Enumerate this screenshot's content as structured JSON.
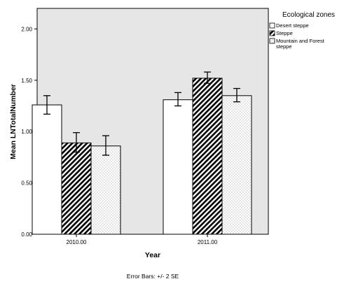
{
  "chart_data": {
    "type": "bar",
    "title": "",
    "xlabel": "Year",
    "ylabel": "Mean LNTotalNumber",
    "categories": [
      "2010.00",
      "2011.00"
    ],
    "ylim": [
      0,
      2.2
    ],
    "yticks": [
      0,
      0.5,
      1.0,
      1.5,
      2.0
    ],
    "ytick_labels": [
      "0.00",
      "0.50",
      "1.00",
      "1.50",
      "2.00"
    ],
    "legend": {
      "title": "Ecological zones",
      "placement": "right"
    },
    "series": [
      {
        "name": "Desert steppe",
        "values": [
          1.26,
          1.31
        ],
        "error_low": [
          1.17,
          1.25
        ],
        "error_high": [
          1.35,
          1.38
        ],
        "fill": "solid-white"
      },
      {
        "name": "Steppe",
        "values": [
          0.89,
          1.52
        ],
        "error_low": [
          0.8,
          1.47
        ],
        "error_high": [
          0.99,
          1.58
        ],
        "fill": "diagonal-hatch"
      },
      {
        "name": "Mountain and Forest steppe",
        "values": [
          0.86,
          1.35
        ],
        "error_low": [
          0.77,
          1.29
        ],
        "error_high": [
          0.96,
          1.42
        ],
        "fill": "dotted"
      }
    ],
    "footnote": "Error Bars: +/- 2 SE",
    "grid": false
  },
  "colors": {
    "plot_background": "#e6e6e6",
    "bar_edge": "#000000",
    "bar_fill": "#ffffff",
    "hatch": "#000000",
    "dots": "#777777"
  }
}
